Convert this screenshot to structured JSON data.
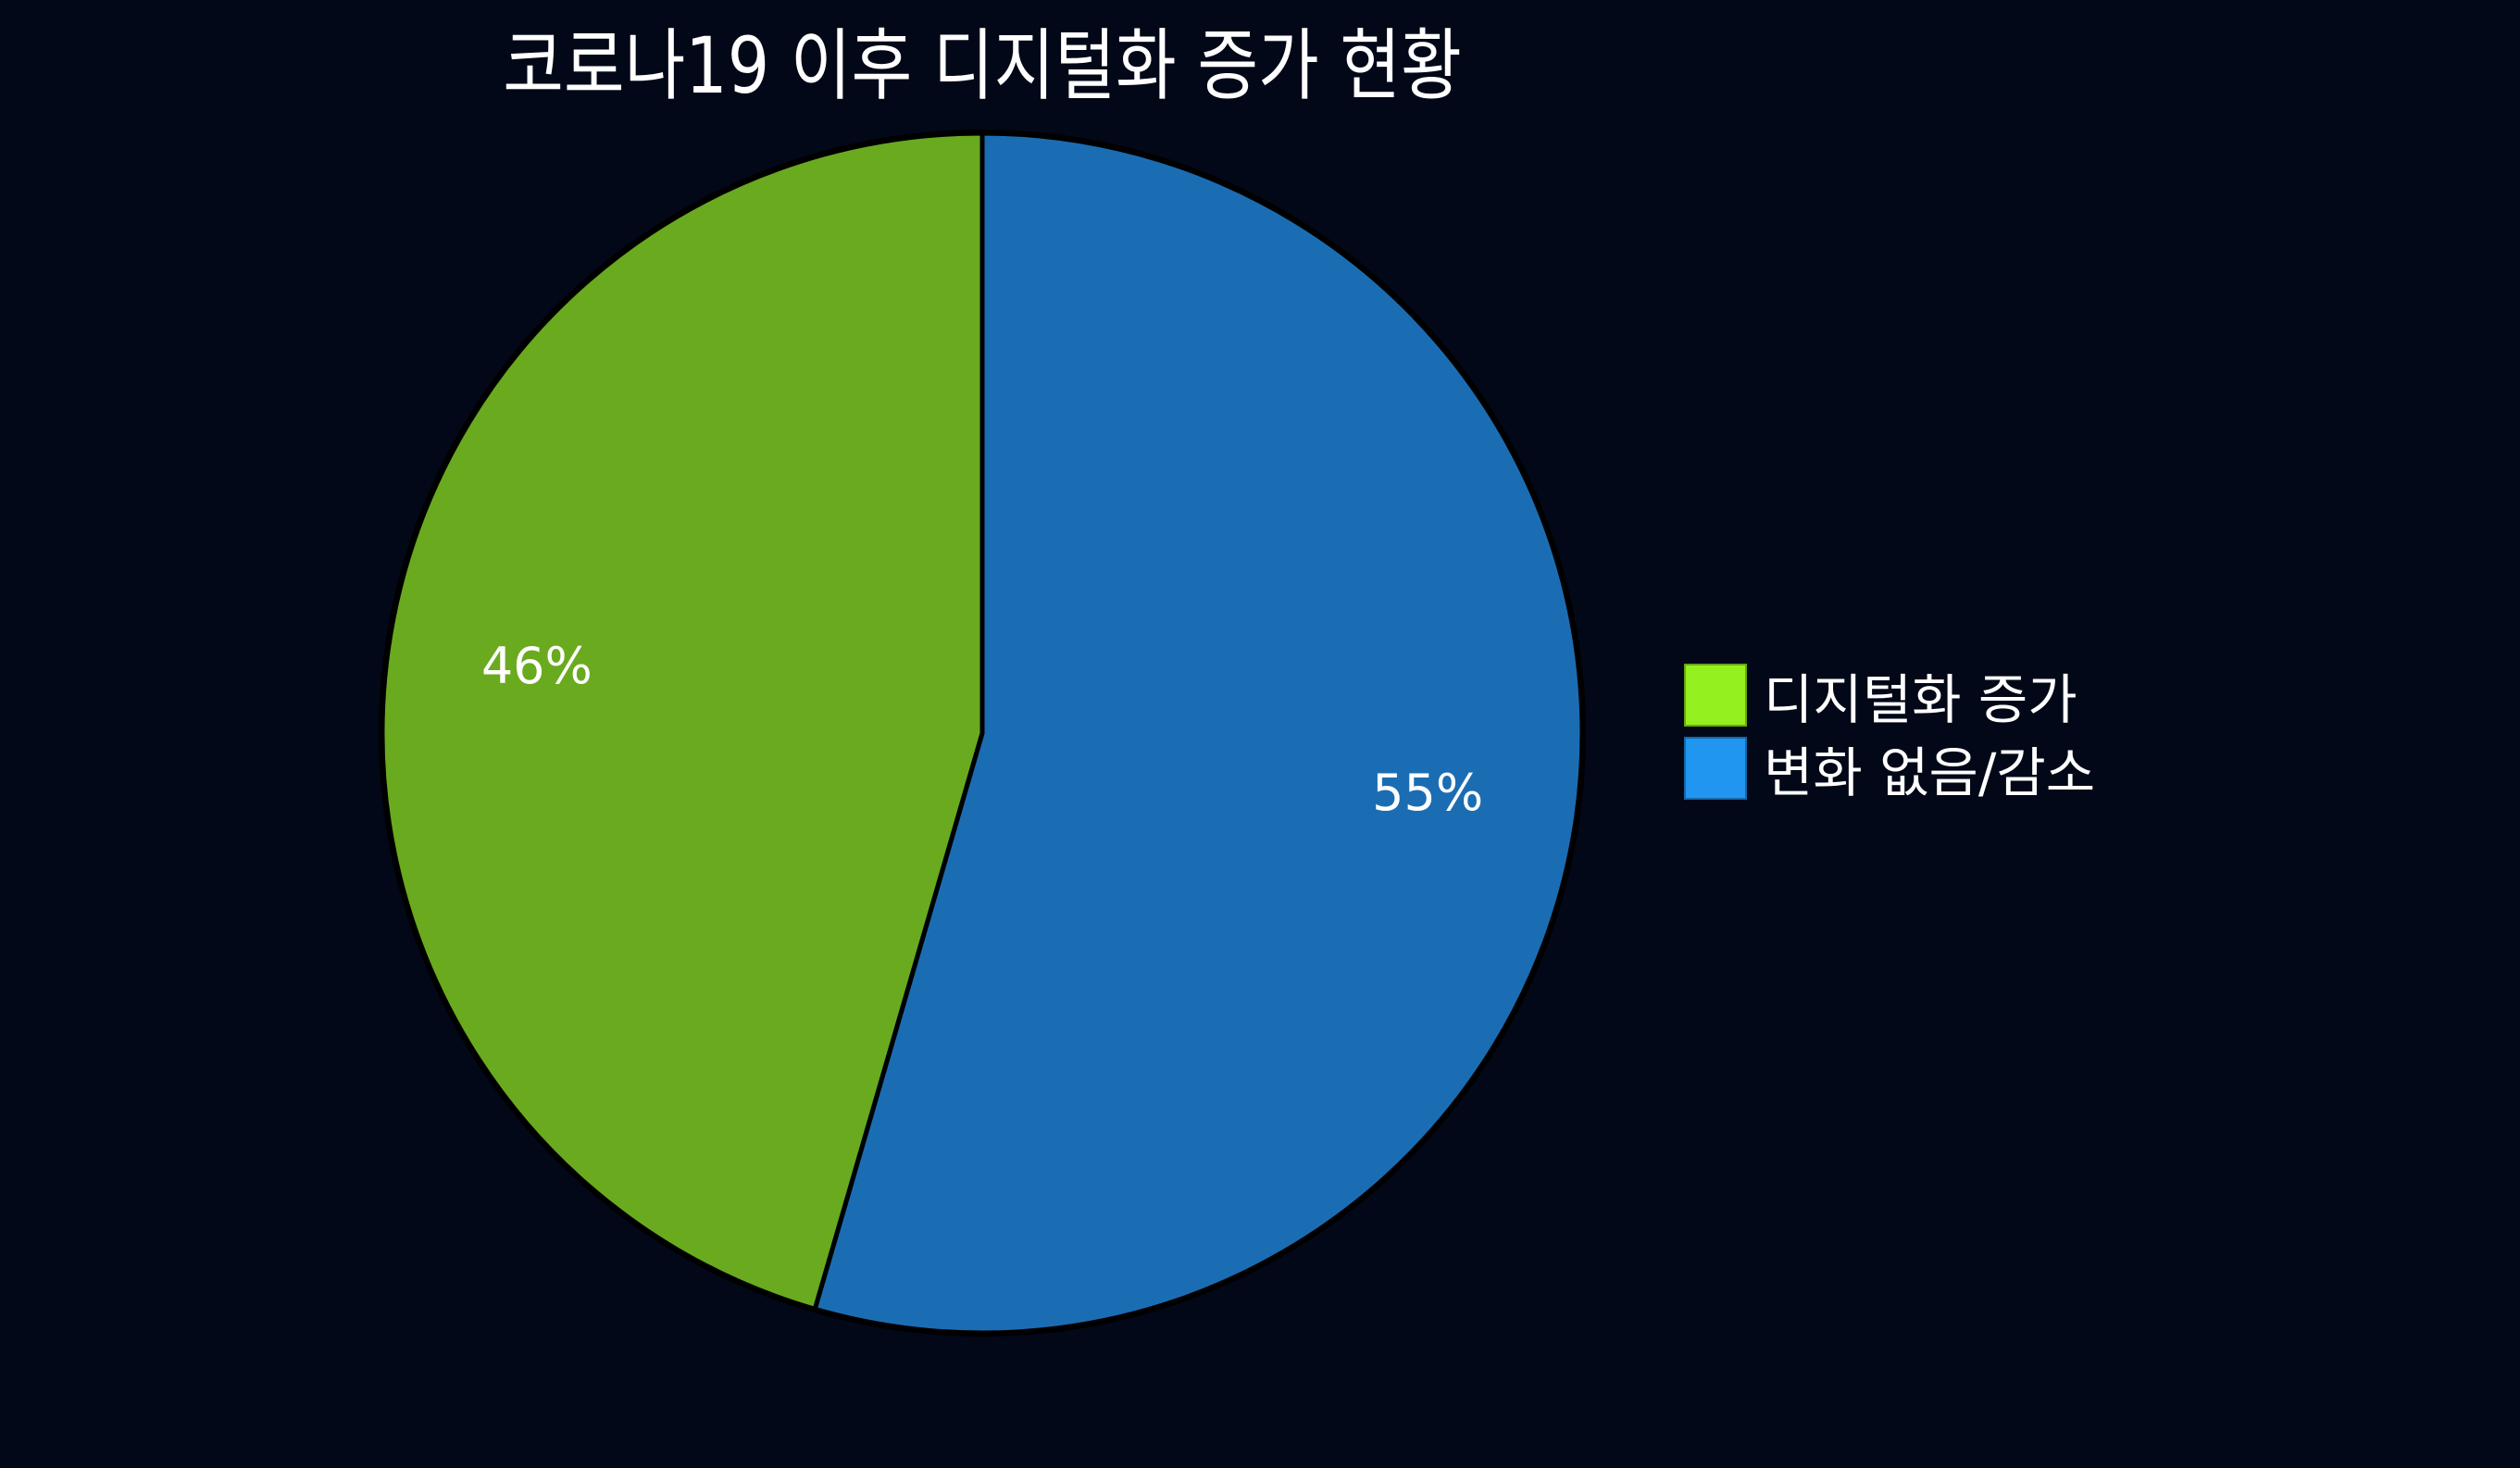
{
  "chart_data": {
    "type": "pie",
    "title": "코로나19 이후 디지털화 증가 현황",
    "slices": [
      {
        "name": "디지털화 증가",
        "value": 45.5,
        "label": "46%",
        "color": "#6aaa1f",
        "legend_color": "#95f01f"
      },
      {
        "name": "변화 없음/감소",
        "value": 54.5,
        "label": "55%",
        "color": "#1b6db3",
        "legend_color": "#2196f0"
      }
    ],
    "legend_position": "right",
    "background": "#020818"
  }
}
